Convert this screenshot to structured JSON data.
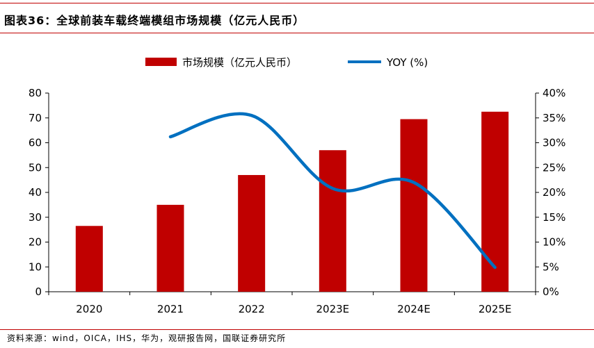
{
  "title": "图表36：全球前装车载终端模组市场规模（亿元人民币）",
  "source": "资料来源：wind，OICA，IHS，华为，观研报告网，国联证券研究所",
  "chart_data": {
    "type": "bar+line",
    "categories": [
      "2020",
      "2021",
      "2022",
      "2023E",
      "2024E",
      "2025E"
    ],
    "series": [
      {
        "name": "市场规模（亿元人民币）",
        "type": "bar",
        "axis": "left",
        "values": [
          26.5,
          35,
          47,
          57,
          69.5,
          72.5
        ]
      },
      {
        "name": "YOY (%)",
        "type": "line",
        "axis": "right",
        "values": [
          null,
          31.2,
          35.5,
          20.8,
          22.0,
          4.9
        ]
      }
    ],
    "left_axis": {
      "min": 0,
      "max": 80,
      "ticks": [
        0,
        10,
        20,
        30,
        40,
        50,
        60,
        70,
        80
      ]
    },
    "right_axis": {
      "min": 0,
      "max": 40,
      "ticks": [
        "0%",
        "5%",
        "10%",
        "15%",
        "20%",
        "25%",
        "30%",
        "35%",
        "40%"
      ]
    },
    "legend": "top-center",
    "grid": false,
    "colors": {
      "bar": "#c00000",
      "line": "#0070c0",
      "rule": "#c00000"
    }
  }
}
